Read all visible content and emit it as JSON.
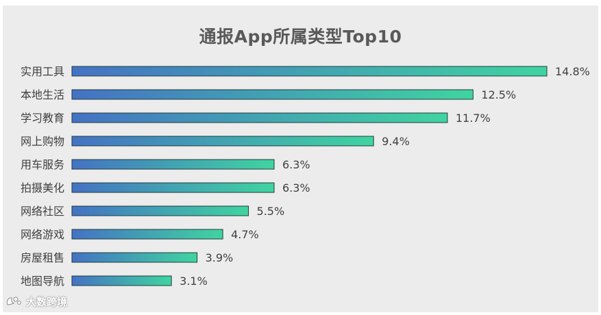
{
  "chart_data": {
    "type": "bar",
    "orientation": "horizontal",
    "title": "通报App所属类型Top10",
    "categories": [
      "实用工具",
      "本地生活",
      "学习教育",
      "网上购物",
      "用车服务",
      "拍摄美化",
      "网络社区",
      "网络游戏",
      "房屋租售",
      "地图导航"
    ],
    "values": [
      14.8,
      12.5,
      11.7,
      9.4,
      6.3,
      6.3,
      5.5,
      4.7,
      3.9,
      3.1
    ],
    "value_labels": [
      "14.8%",
      "12.5%",
      "11.7%",
      "9.4%",
      "6.3%",
      "6.3%",
      "5.5%",
      "4.7%",
      "3.9%",
      "3.1%"
    ],
    "unit": "%",
    "xlim": [
      0,
      14.8
    ],
    "grid": false,
    "legend": "none",
    "colors": {
      "gradient_start": "#4472c4",
      "gradient_end": "#40d4a0",
      "bar_outline": "#1f3b3a"
    }
  },
  "watermark": {
    "text": "大数跨境",
    "icon": "brand-logo-icon"
  }
}
